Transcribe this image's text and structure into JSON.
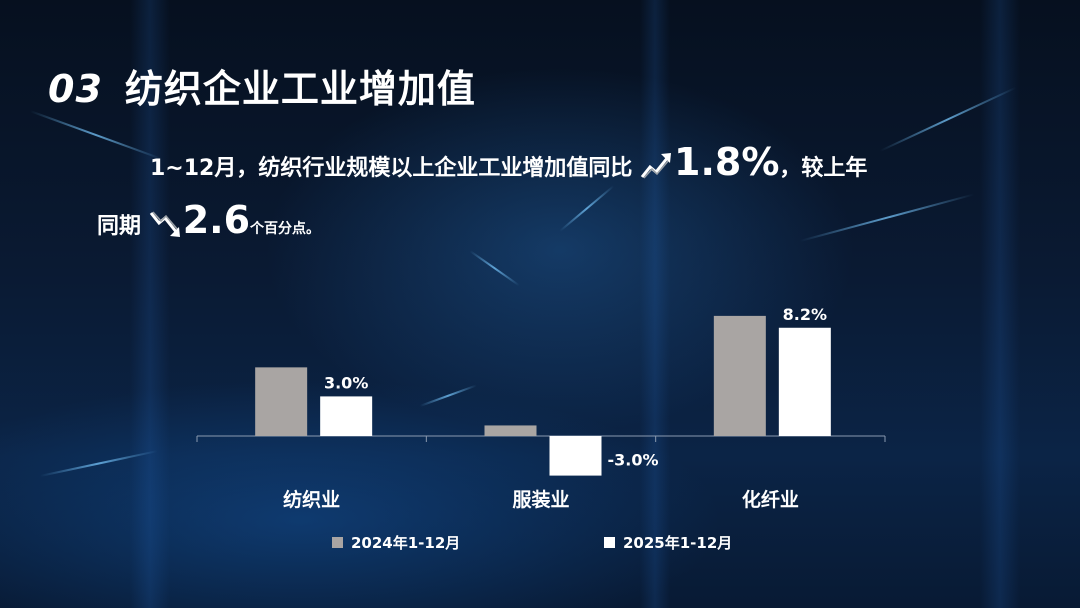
{
  "slide": {
    "section_number": "03",
    "section_title": "纺织企业工业增加值",
    "line1_prefix": "1~12月，纺织行业规模以上企业工业增加值同比",
    "line1_value": "1.8%",
    "line1_suffix": "，较上年",
    "line2_prefix": "同期",
    "line2_value": "2.6",
    "line2_suffix": "个百分点。",
    "up_icon": "trend-up-arrow-icon",
    "down_icon": "trend-down-arrow-icon"
  },
  "colors": {
    "series_2024": "#a9a5a3",
    "series_2025": "#ffffff",
    "axis": "#8a9ab0"
  },
  "chart_data": {
    "type": "bar",
    "categories": [
      "纺织业",
      "服装业",
      "化纤业"
    ],
    "series": [
      {
        "name": "2024年1-12月",
        "values": [
          5.2,
          0.8,
          9.1
        ]
      },
      {
        "name": "2025年1-12月",
        "values": [
          3.0,
          -3.0,
          8.2
        ]
      }
    ],
    "data_labels": [
      "3.0%",
      "-3.0%",
      "8.2%"
    ],
    "ylim": [
      -3.2,
      9.5
    ],
    "grid": false,
    "legend_position": "bottom"
  }
}
